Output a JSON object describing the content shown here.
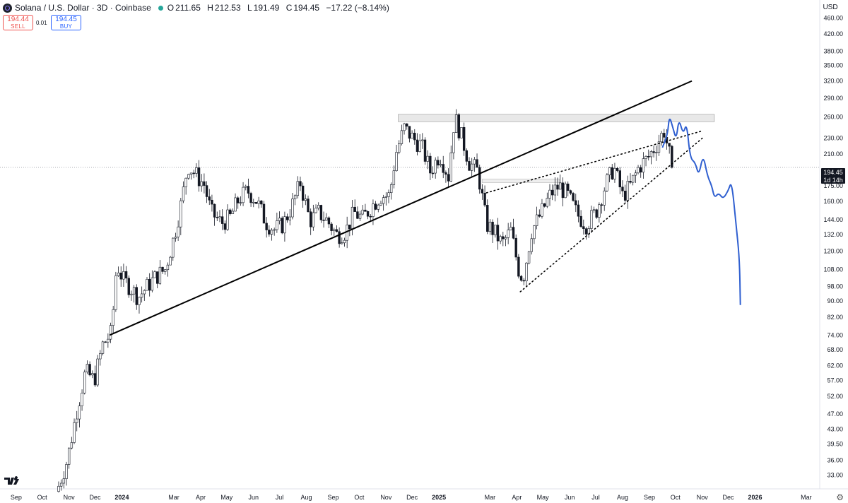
{
  "header": {
    "symbol_title": "Solana / U.S. Dollar · 3D · Coinbase",
    "open_key": "O",
    "open": "211.65",
    "high_key": "H",
    "high": "212.53",
    "low_key": "L",
    "low": "191.49",
    "close_key": "C",
    "close": "194.45",
    "change": "−17.22 (−8.14%)",
    "sell_price": "194.44",
    "sell_label": "SELL",
    "spread": "0.01",
    "buy_price": "194.45",
    "buy_label": "BUY"
  },
  "currency": "USD",
  "last_price": {
    "value": "194.45",
    "countdown": "1d 14h"
  },
  "icons": {
    "symbol": "solana-icon",
    "status": "market-status-dot",
    "logo": "tradingview-logo-icon",
    "settings": "gear-icon"
  },
  "colors": {
    "up": "#ffffff",
    "down": "#131722",
    "projection": "#2f5fd0",
    "grid_text": "#131722"
  },
  "chart_data": {
    "type": "candlestick",
    "scale": "log",
    "ylim": [
      31,
      500
    ],
    "price_ticks": [
      "460.00",
      "420.00",
      "380.00",
      "350.00",
      "320.00",
      "290.00",
      "260.00",
      "230.00",
      "210.00",
      "175.00",
      "160.00",
      "144.00",
      "132.00",
      "120.00",
      "108.00",
      "98.00",
      "90.00",
      "82.00",
      "74.00",
      "68.00",
      "62.00",
      "57.00",
      "52.00",
      "47.00",
      "43.00",
      "39.50",
      "36.00",
      "33.00"
    ],
    "time_axis": [
      "Sep",
      "Oct",
      "Nov",
      "Dec",
      "2024",
      "Mar",
      "Apr",
      "May",
      "Jun",
      "Jul",
      "Aug",
      "Sep",
      "Oct",
      "Nov",
      "Dec",
      "2025",
      "Mar",
      "Apr",
      "May",
      "Jun",
      "Jul",
      "Aug",
      "Sep",
      "Oct",
      "Nov",
      "Dec",
      "2026",
      "Mar"
    ],
    "path_points": [
      [
        "2023-10-20",
        31
      ],
      [
        "2023-10-30",
        36
      ],
      [
        "2023-11-10",
        48
      ],
      [
        "2023-11-20",
        60
      ],
      [
        "2023-11-30",
        57
      ],
      [
        "2023-12-10",
        70
      ],
      [
        "2023-12-20",
        75
      ],
      [
        "2023-12-26",
        112
      ],
      [
        "2024-01-02",
        102
      ],
      [
        "2024-01-10",
        98
      ],
      [
        "2024-01-20",
        92
      ],
      [
        "2024-02-01",
        99
      ],
      [
        "2024-02-10",
        104
      ],
      [
        "2024-02-20",
        108
      ],
      [
        "2024-03-01",
        130
      ],
      [
        "2024-03-10",
        160
      ],
      [
        "2024-03-17",
        197
      ],
      [
        "2024-03-25",
        188
      ],
      [
        "2024-04-05",
        176
      ],
      [
        "2024-04-13",
        150
      ],
      [
        "2024-04-25",
        141
      ],
      [
        "2024-05-05",
        146
      ],
      [
        "2024-05-15",
        162
      ],
      [
        "2024-05-25",
        170
      ],
      [
        "2024-06-05",
        160
      ],
      [
        "2024-06-15",
        142
      ],
      [
        "2024-06-25",
        136
      ],
      [
        "2024-07-05",
        140
      ],
      [
        "2024-07-15",
        155
      ],
      [
        "2024-07-25",
        178
      ],
      [
        "2024-08-05",
        143
      ],
      [
        "2024-08-15",
        150
      ],
      [
        "2024-08-25",
        143
      ],
      [
        "2024-09-05",
        132
      ],
      [
        "2024-09-15",
        134
      ],
      [
        "2024-09-25",
        150
      ],
      [
        "2024-10-05",
        145
      ],
      [
        "2024-10-15",
        155
      ],
      [
        "2024-10-25",
        165
      ],
      [
        "2024-11-05",
        165
      ],
      [
        "2024-11-12",
        210
      ],
      [
        "2024-11-22",
        244
      ],
      [
        "2024-12-02",
        230
      ],
      [
        "2024-12-12",
        220
      ],
      [
        "2024-12-22",
        190
      ],
      [
        "2025-01-02",
        210
      ],
      [
        "2025-01-12",
        185
      ],
      [
        "2025-01-19",
        260
      ],
      [
        "2025-01-25",
        240
      ],
      [
        "2025-02-05",
        200
      ],
      [
        "2025-02-15",
        190
      ],
      [
        "2025-02-25",
        140
      ],
      [
        "2025-03-05",
        135
      ],
      [
        "2025-03-15",
        125
      ],
      [
        "2025-03-25",
        135
      ],
      [
        "2025-04-03",
        108
      ],
      [
        "2025-04-08",
        102
      ],
      [
        "2025-04-18",
        135
      ],
      [
        "2025-04-28",
        148
      ],
      [
        "2025-05-10",
        167
      ],
      [
        "2025-05-20",
        175
      ],
      [
        "2025-05-30",
        165
      ],
      [
        "2025-06-10",
        148
      ],
      [
        "2025-06-20",
        140
      ],
      [
        "2025-07-01",
        150
      ],
      [
        "2025-07-12",
        175
      ],
      [
        "2025-07-22",
        195
      ],
      [
        "2025-08-01",
        165
      ],
      [
        "2025-08-10",
        175
      ],
      [
        "2025-08-20",
        195
      ],
      [
        "2025-08-30",
        205
      ],
      [
        "2025-09-08",
        220
      ],
      [
        "2025-09-18",
        240
      ],
      [
        "2025-09-25",
        205
      ],
      [
        "2025-09-28",
        194.45
      ]
    ],
    "annotations": {
      "trendline": {
        "from": [
          "2023-12-18",
          74
        ],
        "to": [
          "2025-10-20",
          320
        ]
      },
      "resistance_zone": {
        "from": "2024-11-15",
        "to": "2025-11-15",
        "top": 264,
        "bottom": 253
      },
      "small_zone": {
        "from": "2025-02-20",
        "to": "2025-05-20",
        "top": 182,
        "bottom": 178
      },
      "wedge_upper": {
        "from": [
          "2025-02-25",
          168
        ],
        "to": [
          "2025-11-01",
          240
        ]
      },
      "wedge_lower": {
        "from": [
          "2025-04-05",
          95
        ],
        "to": [
          "2025-11-01",
          230
        ]
      },
      "projection": [
        [
          "2025-09-16",
          218
        ],
        [
          "2025-09-22",
          235
        ],
        [
          "2025-09-24",
          262
        ],
        [
          "2025-09-28",
          245
        ],
        [
          "2025-10-02",
          228
        ],
        [
          "2025-10-05",
          258
        ],
        [
          "2025-10-10",
          235
        ],
        [
          "2025-10-14",
          252
        ],
        [
          "2025-10-18",
          205
        ],
        [
          "2025-10-24",
          200
        ],
        [
          "2025-10-28",
          185
        ],
        [
          "2025-11-02",
          210
        ],
        [
          "2025-11-07",
          185
        ],
        [
          "2025-11-12",
          175
        ],
        [
          "2025-11-15",
          163
        ],
        [
          "2025-11-20",
          168
        ],
        [
          "2025-11-25",
          162
        ],
        [
          "2025-12-01",
          170
        ],
        [
          "2025-12-05",
          180
        ],
        [
          "2025-12-10",
          140
        ],
        [
          "2025-12-14",
          115
        ],
        [
          "2025-12-15",
          88
        ]
      ]
    }
  }
}
